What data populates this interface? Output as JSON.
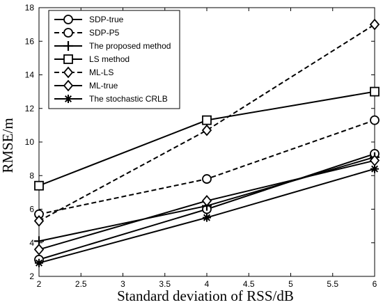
{
  "chart_data": {
    "type": "line",
    "xlabel": "Standard deviation of RSS/dB",
    "ylabel": "RMSE/m",
    "xlim": [
      2,
      6
    ],
    "ylim": [
      2,
      18
    ],
    "xticks": [
      "2",
      "2.5",
      "3",
      "3.5",
      "4",
      "4.5",
      "5",
      "5.5",
      "6"
    ],
    "yticks": [
      "2",
      "4",
      "6",
      "8",
      "10",
      "12",
      "14",
      "16",
      "18"
    ],
    "grid": false,
    "legend_position": "top-left",
    "x": [
      2,
      4,
      6
    ],
    "series": [
      {
        "name": "SDP-true",
        "marker": "circle",
        "dash": "solid",
        "values": [
          3.0,
          6.0,
          9.3
        ]
      },
      {
        "name": "SDP-P5",
        "marker": "circle",
        "dash": "dashed",
        "values": [
          5.7,
          7.8,
          11.3
        ]
      },
      {
        "name": "The proposed method",
        "marker": "plus",
        "dash": "solid",
        "values": [
          4.1,
          6.2,
          9.1
        ]
      },
      {
        "name": "LS method",
        "marker": "square",
        "dash": "solid",
        "values": [
          7.4,
          11.3,
          13.0
        ]
      },
      {
        "name": "ML-LS",
        "marker": "diamond",
        "dash": "dashed",
        "values": [
          5.3,
          10.7,
          17.0
        ]
      },
      {
        "name": "ML-true",
        "marker": "diamond",
        "dash": "solid",
        "values": [
          3.6,
          6.5,
          8.9
        ]
      },
      {
        "name": "The stochastic CRLB",
        "marker": "asterisk",
        "dash": "solid",
        "values": [
          2.8,
          5.5,
          8.4
        ]
      }
    ]
  }
}
